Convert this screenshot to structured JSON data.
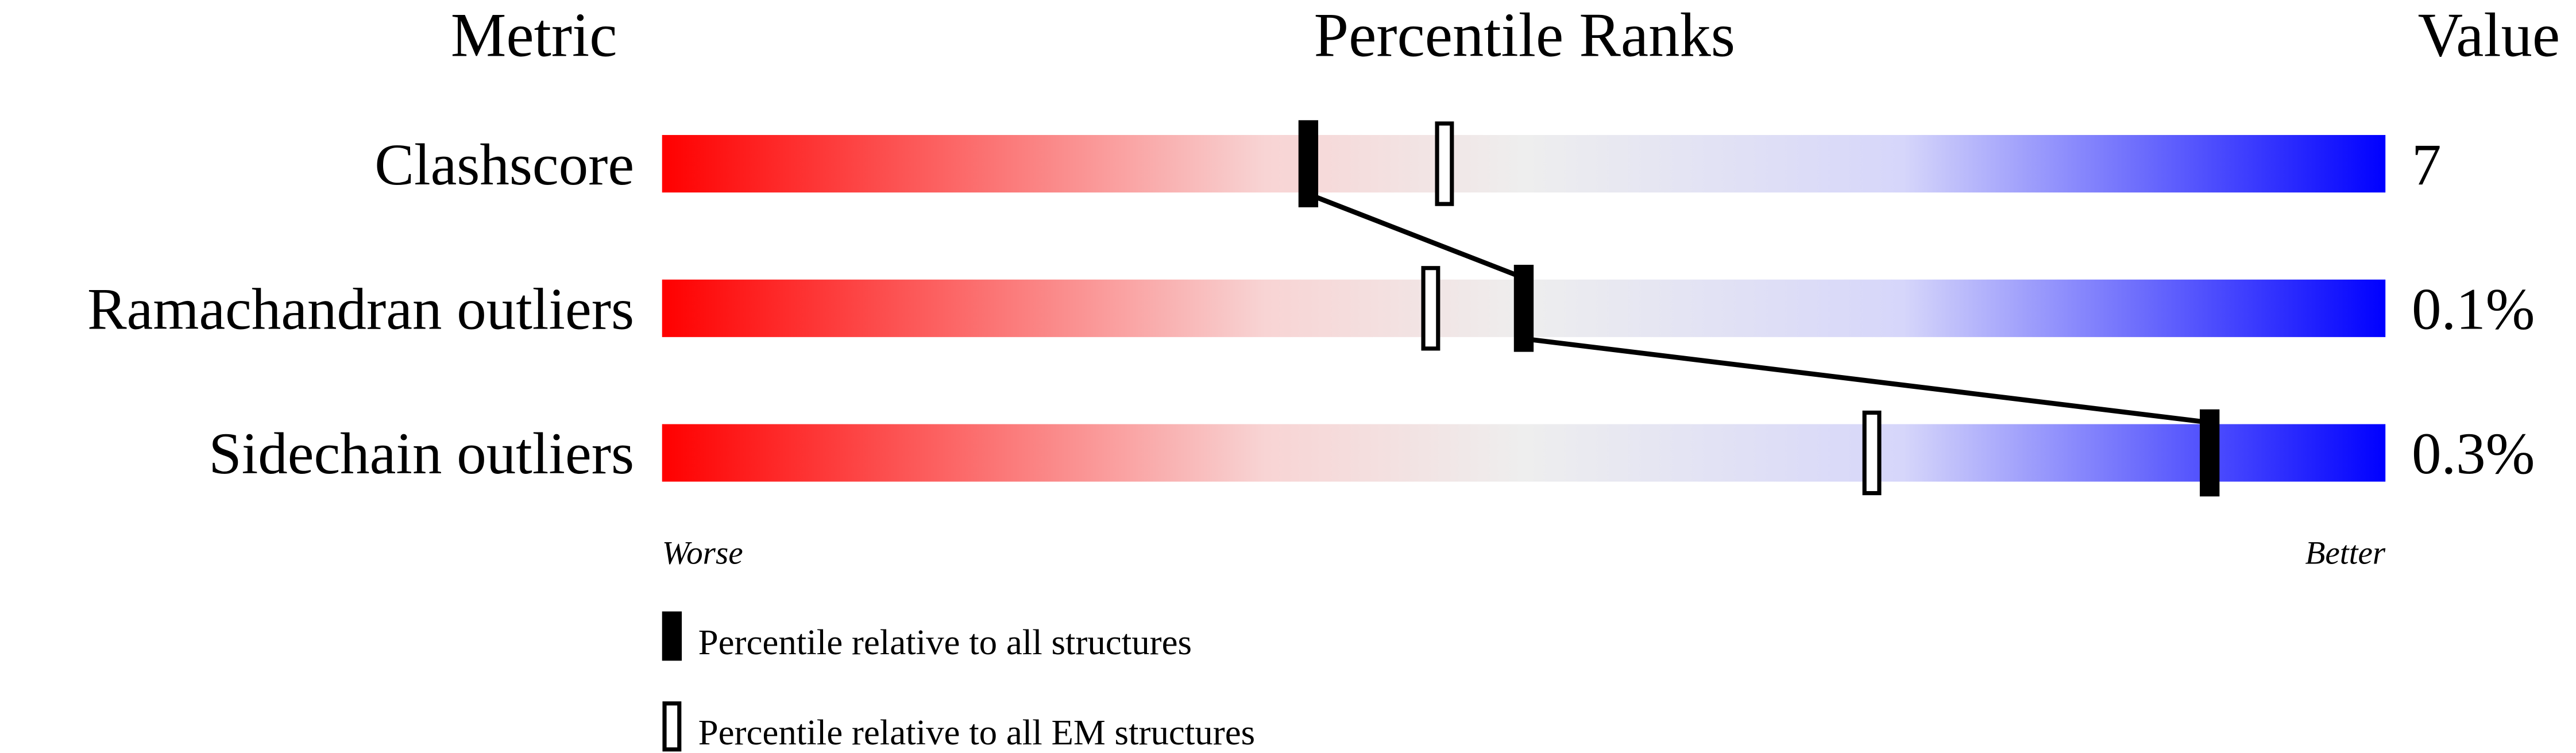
{
  "chart_data": {
    "type": "percentile-slider",
    "headers": {
      "metric": "Metric",
      "ranks": "Percentile Ranks",
      "value": "Value"
    },
    "range": [
      0,
      100
    ],
    "metrics": [
      {
        "name": "Clashscore",
        "value": "7",
        "percentile_all": 37.5,
        "percentile_em": 45.4
      },
      {
        "name": "Ramachandran outliers",
        "value": "0.1%",
        "percentile_all": 50.0,
        "percentile_em": 44.6
      },
      {
        "name": "Sidechain outliers",
        "value": "0.3%",
        "percentile_all": 89.8,
        "percentile_em": 70.2
      }
    ],
    "axis_labels": {
      "left": "Worse",
      "right": "Better"
    },
    "legend": {
      "all": "Percentile relative to all structures",
      "em": "Percentile relative to all EM structures"
    },
    "colors": {
      "worse": "#ff0000",
      "middle": "#eeeeee",
      "better": "#0000ff"
    }
  }
}
